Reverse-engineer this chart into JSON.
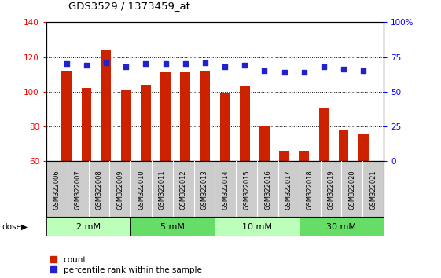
{
  "title": "GDS3529 / 1373459_at",
  "samples": [
    "GSM322006",
    "GSM322007",
    "GSM322008",
    "GSM322009",
    "GSM322010",
    "GSM322011",
    "GSM322012",
    "GSM322013",
    "GSM322014",
    "GSM322015",
    "GSM322016",
    "GSM322017",
    "GSM322018",
    "GSM322019",
    "GSM322020",
    "GSM322021"
  ],
  "counts": [
    112,
    102,
    124,
    101,
    104,
    111,
    111,
    112,
    99,
    103,
    80,
    66,
    66,
    91,
    78,
    76
  ],
  "percentiles": [
    70,
    69,
    71,
    68,
    70,
    70,
    70,
    71,
    68,
    69,
    65,
    64,
    64,
    68,
    66,
    65
  ],
  "doses": [
    {
      "label": "2 mM",
      "start": 0,
      "end": 3,
      "color": "#bbffbb"
    },
    {
      "label": "5 mM",
      "start": 4,
      "end": 7,
      "color": "#66dd66"
    },
    {
      "label": "10 mM",
      "start": 8,
      "end": 11,
      "color": "#bbffbb"
    },
    {
      "label": "30 mM",
      "start": 12,
      "end": 15,
      "color": "#66dd66"
    }
  ],
  "bar_color": "#cc2200",
  "dot_color": "#2222cc",
  "ylim_left": [
    60,
    140
  ],
  "ylim_right": [
    0,
    100
  ],
  "yticks_left": [
    60,
    80,
    100,
    120,
    140
  ],
  "yticks_right": [
    0,
    25,
    50,
    75,
    100
  ],
  "ylabel_right_labels": [
    "0",
    "25",
    "50",
    "75",
    "100%"
  ],
  "background_color": "#ffffff",
  "bar_width": 0.5,
  "tick_bg_color": "#cccccc",
  "tick_bg_edge": "#aaaaaa"
}
